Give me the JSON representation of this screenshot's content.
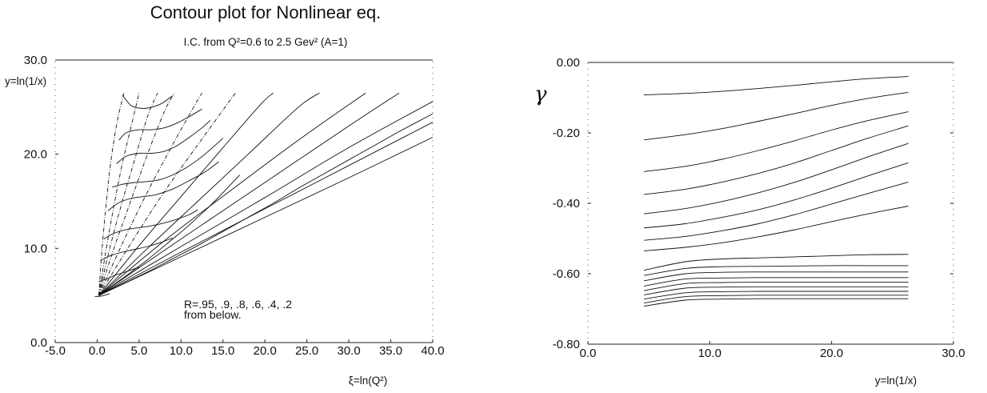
{
  "chart_data": [
    {
      "type": "line",
      "title": "Contour plot  for Nonlinear eq.",
      "subtitle": "I.C. from Q²=0.6 to 2.5 Gev² (A=1)",
      "xlabel": "ξ=ln(Q²)",
      "ylabel": "y=ln(1/x)",
      "xlim": [
        -5,
        40
      ],
      "ylim": [
        0,
        30
      ],
      "xticks": [
        "-5.0",
        "0.0",
        "5.0",
        "10.0",
        "15.0",
        "20.0",
        "25.0",
        "30.0",
        "35.0",
        "40.0"
      ],
      "yticks": [
        "0.0",
        "10.0",
        "20.0",
        "30.0"
      ],
      "annotation": [
        "R=.95, .9, .8, .6, .4, .2",
        "from below."
      ],
      "contours": [
        {
          "x": [
            0.2,
            3.0,
            6.0,
            9.0,
            11.0,
            14.0,
            17.0
          ],
          "y": [
            5.0,
            6.8,
            8.8,
            11.0,
            12.5,
            15.0,
            17.8
          ]
        },
        {
          "x": [
            0.2,
            3.0,
            6.0,
            9.0,
            12.0,
            15.0,
            18.0,
            21.0,
            24.0,
            27.0,
            30.0,
            33.0,
            36.0,
            40.0
          ],
          "y": [
            5.0,
            6.2,
            7.5,
            8.9,
            10.3,
            11.8,
            13.3,
            14.8,
            16.4,
            17.9,
            19.4,
            20.9,
            22.4,
            24.3
          ]
        }
      ],
      "fan_lines": [
        {
          "x": [
            0.2,
            0.5,
            1.0,
            1.6,
            2.4,
            3.2
          ],
          "y": [
            5.0,
            9.0,
            14.0,
            19.0,
            23.5,
            26.5
          ]
        },
        {
          "x": [
            0.2,
            1.0,
            2.0,
            3.0,
            4.2,
            5.0
          ],
          "y": [
            5.0,
            9.5,
            14.5,
            19.0,
            23.5,
            26.5
          ]
        },
        {
          "x": [
            0.2,
            1.5,
            3.0,
            4.5,
            6.0,
            7.2
          ],
          "y": [
            5.0,
            10.0,
            15.0,
            19.5,
            24.0,
            26.5
          ]
        },
        {
          "x": [
            0.2,
            2.0,
            4.0,
            6.0,
            8.0,
            9.2
          ],
          "y": [
            5.0,
            10.0,
            15.0,
            20.0,
            24.5,
            26.5
          ]
        },
        {
          "x": [
            0.2,
            3.0,
            6.0,
            9.0,
            11.5,
            12.5
          ],
          "y": [
            5.0,
            10.5,
            16.0,
            21.0,
            25.0,
            26.5
          ]
        },
        {
          "x": [
            0.2,
            4.0,
            8.0,
            12.0,
            15.5,
            16.5
          ],
          "y": [
            5.0,
            10.5,
            16.0,
            21.0,
            25.3,
            26.5
          ]
        },
        {
          "x": [
            0.2,
            5.0,
            10.0,
            15.0,
            19.5,
            21.0
          ],
          "y": [
            5.0,
            10.3,
            15.5,
            20.7,
            25.3,
            26.5
          ]
        },
        {
          "x": [
            0.2,
            6.0,
            12.0,
            18.0,
            24.0,
            26.5
          ],
          "y": [
            5.0,
            10.0,
            15.0,
            20.0,
            25.0,
            26.5
          ]
        },
        {
          "x": [
            0.2,
            8.0,
            16.0,
            24.0,
            32.0
          ],
          "y": [
            5.0,
            10.8,
            16.2,
            21.5,
            26.5
          ]
        },
        {
          "x": [
            0.2,
            10.0,
            20.0,
            30.0,
            36.0
          ],
          "y": [
            5.0,
            11.0,
            17.0,
            23.0,
            26.5
          ]
        },
        {
          "x": [
            0.2,
            10.0,
            20.0,
            30.0,
            40.0
          ],
          "y": [
            5.0,
            10.2,
            15.4,
            20.7,
            25.6
          ]
        },
        {
          "x": [
            0.2,
            10.0,
            20.0,
            30.0,
            40.0
          ],
          "y": [
            5.0,
            9.6,
            14.2,
            18.8,
            23.4
          ]
        },
        {
          "x": [
            0.2,
            10.0,
            20.0,
            30.0,
            40.0
          ],
          "y": [
            5.0,
            9.1,
            13.3,
            17.5,
            21.8
          ]
        }
      ],
      "rungs": [
        {
          "x": [
            -0.3,
            0.2,
            0.8,
            1.5
          ],
          "y": [
            4.9,
            4.9,
            5.0,
            5.2
          ]
        },
        {
          "x": [
            0.2,
            1.0,
            2.0,
            3.0,
            4.0,
            5.0
          ],
          "y": [
            6.5,
            6.7,
            7.1,
            7.4,
            7.7,
            8.0
          ]
        },
        {
          "x": [
            0.4,
            1.5,
            3.0,
            4.5,
            6.0,
            7.5,
            9.0
          ],
          "y": [
            8.7,
            9.2,
            9.6,
            9.9,
            10.2,
            10.6,
            11.1
          ]
        },
        {
          "x": [
            0.8,
            2.0,
            3.5,
            5.0,
            6.5,
            8.0,
            9.5,
            11.0,
            12.0
          ],
          "y": [
            11.0,
            11.6,
            12.0,
            12.2,
            12.4,
            12.7,
            13.1,
            13.6,
            14.1
          ]
        },
        {
          "x": [
            1.3,
            2.5,
            4.0,
            5.5,
            7.0,
            9.0,
            11.0,
            13.0,
            14.5
          ],
          "y": [
            14.0,
            14.8,
            15.3,
            15.5,
            15.7,
            16.3,
            17.2,
            18.2,
            19.2
          ]
        },
        {
          "x": [
            1.8,
            3.0,
            4.5,
            6.0,
            7.5,
            9.0,
            10.5,
            12.0,
            13.5,
            15.0
          ],
          "y": [
            16.5,
            16.8,
            17.0,
            17.1,
            17.3,
            17.8,
            18.5,
            19.4,
            20.5,
            21.7
          ]
        },
        {
          "x": [
            2.3,
            3.5,
            5.0,
            6.5,
            8.0,
            9.5,
            11.0,
            12.5,
            13.5
          ],
          "y": [
            19.0,
            19.8,
            20.1,
            20.1,
            20.3,
            20.9,
            21.8,
            22.8,
            23.6
          ]
        },
        {
          "x": [
            2.6,
            3.5,
            5.0,
            6.5,
            8.0,
            9.5,
            11.0,
            12.5
          ],
          "y": [
            21.5,
            22.3,
            22.6,
            22.6,
            22.8,
            23.3,
            24.0,
            24.8
          ]
        },
        {
          "x": [
            3.0,
            4.0,
            5.0,
            6.0,
            7.5,
            9.0
          ],
          "y": [
            26.3,
            25.2,
            24.9,
            24.9,
            25.3,
            26.2
          ]
        }
      ]
    },
    {
      "type": "line",
      "xlabel": "y=ln(1/x)",
      "ylabel": "γ",
      "xlim": [
        0,
        30
      ],
      "ylim": [
        -0.8,
        0.0
      ],
      "xticks": [
        "0.0",
        "10.0",
        "20.0",
        "30.0"
      ],
      "yticks": [
        "0.00",
        "-0.20",
        "-0.40",
        "-0.60",
        "-0.80"
      ],
      "x": [
        4.6,
        8,
        11,
        14,
        17,
        20,
        23,
        26.3
      ],
      "series": [
        {
          "values": [
            -0.092,
            -0.088,
            -0.082,
            -0.074,
            -0.065,
            -0.055,
            -0.046,
            -0.04
          ]
        },
        {
          "values": [
            -0.22,
            -0.205,
            -0.188,
            -0.167,
            -0.145,
            -0.122,
            -0.102,
            -0.085
          ]
        },
        {
          "values": [
            -0.31,
            -0.295,
            -0.275,
            -0.25,
            -0.222,
            -0.192,
            -0.165,
            -0.14
          ]
        },
        {
          "values": [
            -0.375,
            -0.36,
            -0.34,
            -0.315,
            -0.285,
            -0.25,
            -0.215,
            -0.18
          ]
        },
        {
          "values": [
            -0.43,
            -0.415,
            -0.395,
            -0.37,
            -0.34,
            -0.305,
            -0.268,
            -0.23
          ]
        },
        {
          "values": [
            -0.47,
            -0.458,
            -0.44,
            -0.418,
            -0.39,
            -0.357,
            -0.322,
            -0.285
          ]
        },
        {
          "values": [
            -0.505,
            -0.494,
            -0.478,
            -0.458,
            -0.432,
            -0.402,
            -0.372,
            -0.34
          ]
        },
        {
          "values": [
            -0.535,
            -0.525,
            -0.512,
            -0.495,
            -0.475,
            -0.452,
            -0.43,
            -0.408
          ]
        },
        {
          "values": [
            -0.59,
            -0.566,
            -0.558,
            -0.555,
            -0.552,
            -0.549,
            -0.546,
            -0.545
          ]
        },
        {
          "values": [
            -0.605,
            -0.585,
            -0.58,
            -0.579,
            -0.578,
            -0.577,
            -0.577,
            -0.577
          ]
        },
        {
          "values": [
            -0.62,
            -0.6,
            -0.596,
            -0.595,
            -0.595,
            -0.595,
            -0.595,
            -0.595
          ]
        },
        {
          "values": [
            -0.635,
            -0.615,
            -0.612,
            -0.611,
            -0.611,
            -0.611,
            -0.611,
            -0.611
          ]
        },
        {
          "values": [
            -0.648,
            -0.628,
            -0.625,
            -0.624,
            -0.624,
            -0.624,
            -0.624,
            -0.624
          ]
        },
        {
          "values": [
            -0.66,
            -0.641,
            -0.638,
            -0.637,
            -0.637,
            -0.637,
            -0.637,
            -0.637
          ]
        },
        {
          "values": [
            -0.672,
            -0.654,
            -0.651,
            -0.65,
            -0.65,
            -0.65,
            -0.65,
            -0.65
          ]
        },
        {
          "values": [
            -0.683,
            -0.665,
            -0.662,
            -0.661,
            -0.661,
            -0.661,
            -0.661,
            -0.661
          ]
        },
        {
          "values": [
            -0.692,
            -0.675,
            -0.672,
            -0.671,
            -0.671,
            -0.671,
            -0.671,
            -0.671
          ]
        }
      ]
    }
  ]
}
